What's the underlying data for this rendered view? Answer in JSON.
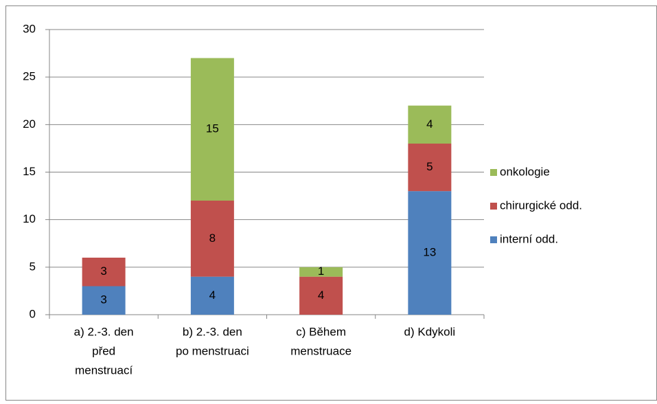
{
  "chart_data": {
    "type": "stacked_bar",
    "categories": [
      [
        "a)  2.-3. den",
        "před",
        "menstruací"
      ],
      [
        "b)  2.-3. den",
        "po menstruaci"
      ],
      [
        "c)  Během",
        "menstruace"
      ],
      [
        "d)  Kdykoli"
      ]
    ],
    "series": [
      {
        "name": "interní odd.",
        "color": "#4f81bd",
        "values": [
          3,
          4,
          0,
          13
        ]
      },
      {
        "name": "chirurgické odd.",
        "color": "#c0504d",
        "values": [
          3,
          8,
          4,
          5
        ]
      },
      {
        "name": "onkologie",
        "color": "#9bbb59",
        "values": [
          0,
          15,
          1,
          4
        ]
      }
    ],
    "ylim": [
      0,
      30
    ],
    "yticks": [
      0,
      5,
      10,
      15,
      20,
      25,
      30
    ],
    "grid": true,
    "legend": "right"
  }
}
